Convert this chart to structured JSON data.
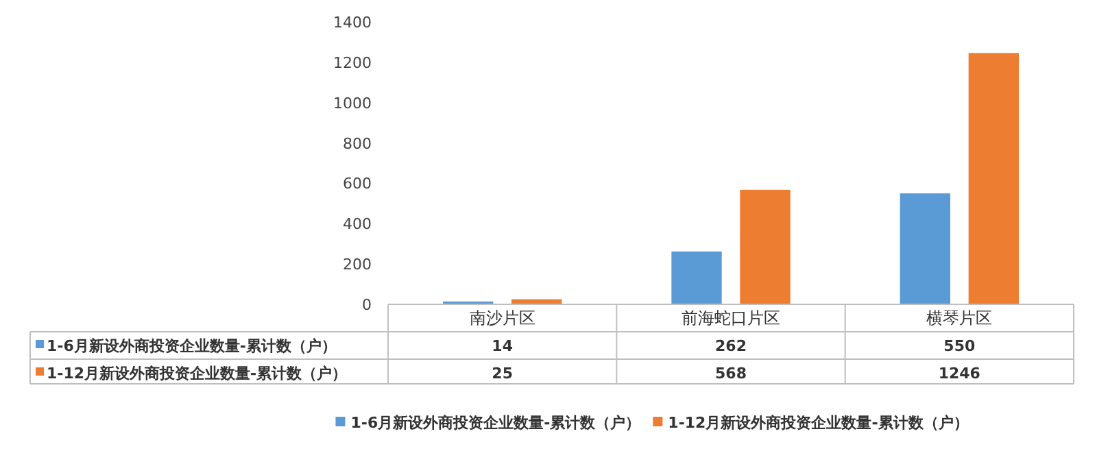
{
  "chart_data": {
    "type": "bar",
    "categories": [
      "南沙片区",
      "前海蛇口片区",
      "横琴片区"
    ],
    "series": [
      {
        "name": "1-6月新设外商投资企业数量-累计数（户）",
        "color": "#5b9bd5",
        "values": [
          14,
          262,
          550
        ]
      },
      {
        "name": "1-12月新设外商投资企业数量-累计数（户）",
        "color": "#ed7d31",
        "values": [
          25,
          568,
          1246
        ]
      }
    ],
    "ylim": [
      0,
      1400
    ],
    "yticks": [
      0,
      200,
      400,
      600,
      800,
      1000,
      1200,
      1400
    ],
    "data_labels": true,
    "legend": "bottom"
  }
}
